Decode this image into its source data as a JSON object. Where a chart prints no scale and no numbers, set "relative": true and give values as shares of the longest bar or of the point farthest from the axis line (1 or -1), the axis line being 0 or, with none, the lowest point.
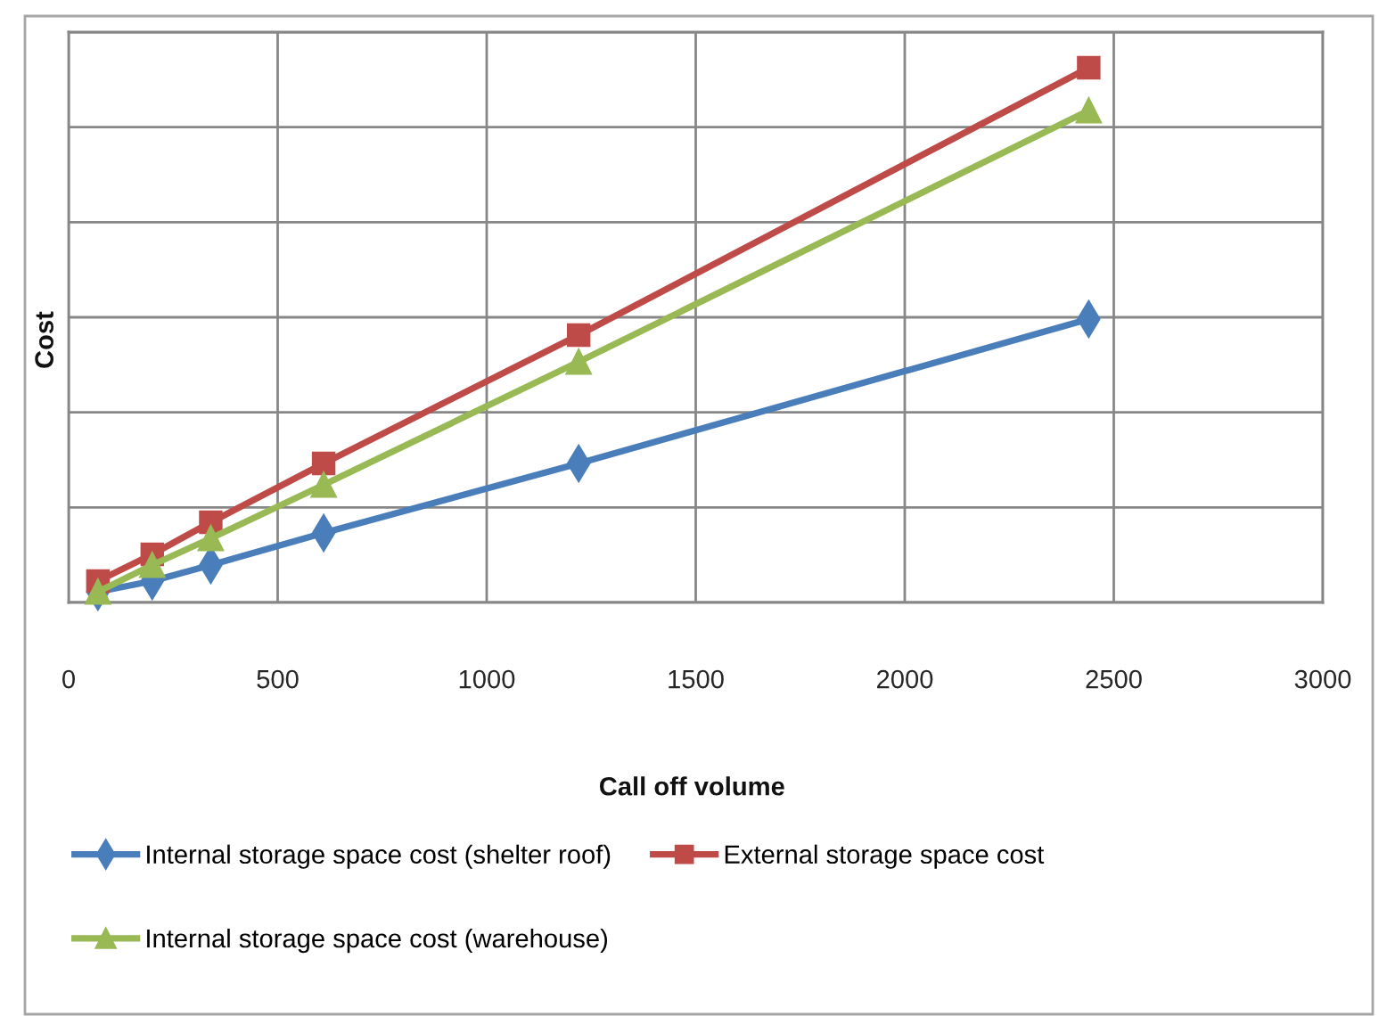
{
  "chart_data": {
    "type": "line",
    "xlabel": "Call off volume",
    "ylabel": "Cost",
    "x": [
      70,
      200,
      340,
      610,
      1220,
      2440
    ],
    "series": [
      {
        "name": "Internal storage space cost (shelter roof)",
        "color": "#4a7ebb",
        "marker": "diamond",
        "values": [
          0.02,
          0.04,
          0.07,
          0.13,
          0.26,
          0.53
        ]
      },
      {
        "name": "External storage space cost",
        "color": "#be4b48",
        "marker": "square",
        "values": [
          0.04,
          0.09,
          0.15,
          0.26,
          0.5,
          1
        ]
      },
      {
        "name": "Internal storage space cost (warehouse)",
        "color": "#98b954",
        "marker": "triangle",
        "values": [
          0.02,
          0.07,
          0.12,
          0.22,
          0.45,
          0.92
        ]
      }
    ],
    "relative": true,
    "xlim": [
      0,
      3000
    ],
    "xticks": [
      0,
      500,
      1000,
      1500,
      2000,
      2500,
      3000
    ],
    "grid": true,
    "legend": "bottom",
    "tick_labels": "x",
    "line_style": "solid"
  }
}
